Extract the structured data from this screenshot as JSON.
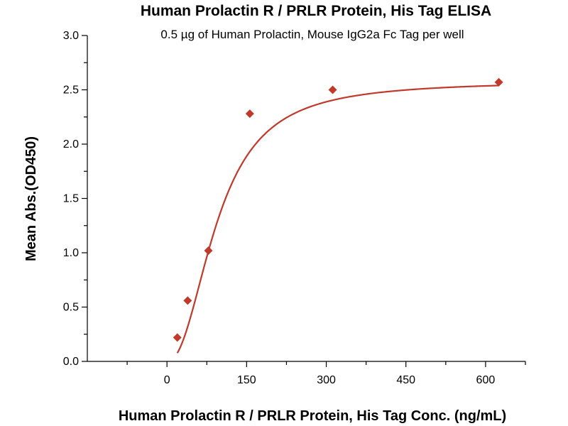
{
  "chart_data": {
    "type": "scatter",
    "title": "Human Prolactin R / PRLR Protein, His Tag  ELISA",
    "subtitle": "0.5 µg of Human Prolactin, Mouse IgG2a Fc Tag  per well",
    "xlabel": "Human Prolactin R / PRLR Protein, His Tag  Conc. (ng/mL)",
    "ylabel": "Mean Abs.(OD450)",
    "xlim": [
      -150,
      675
    ],
    "ylim": [
      0,
      3.0
    ],
    "x_ticks": [
      "0",
      "150",
      "300",
      "450",
      "600"
    ],
    "y_ticks": [
      "0.0",
      "0.5",
      "1.0",
      "1.5",
      "2.0",
      "2.5",
      "3.0"
    ],
    "grid": false,
    "series": [
      {
        "points": [
          {
            "x": 19.5,
            "y": 0.22
          },
          {
            "x": 39,
            "y": 0.56
          },
          {
            "x": 78,
            "y": 1.02
          },
          {
            "x": 156,
            "y": 2.28
          },
          {
            "x": 312,
            "y": 2.5
          },
          {
            "x": 625,
            "y": 2.57
          }
        ],
        "marker": "diamond",
        "color": "#c0392b",
        "fit_line": "4-parameter logistic"
      }
    ]
  }
}
